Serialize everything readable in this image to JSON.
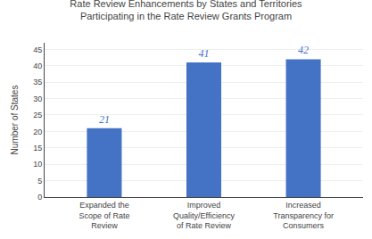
{
  "chart_data": {
    "type": "bar",
    "title": "Rate Review Enhancements by States and Territories\nParticipating in the Rate Review Grants Program",
    "categories": [
      "Expanded the\nScope of Rate\nReview",
      "Improved\nQuality/Efficiency\nof Rate Review",
      "Increased\nTransparency for\nConsumers"
    ],
    "values": [
      21,
      41,
      42
    ],
    "color": "#4472C4",
    "ylabel": "Number of States",
    "ylim": [
      0,
      47
    ],
    "yticks": [
      0,
      5,
      10,
      15,
      20,
      25,
      30,
      35,
      40,
      45
    ],
    "grid": true,
    "data_labels": true
  }
}
